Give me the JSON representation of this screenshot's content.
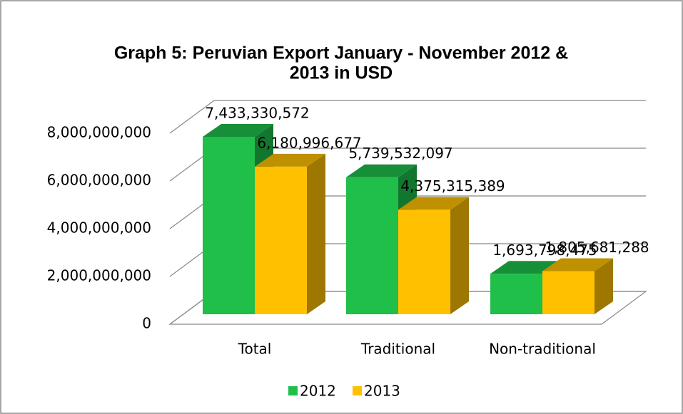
{
  "chart_data": {
    "type": "bar3d",
    "title": "Graph 5: Peruvian Export January - November 2012 &",
    "title_line2": "2013 in USD",
    "categories": [
      "Total",
      "Traditional",
      "Non-traditional"
    ],
    "series": [
      {
        "name": "2012",
        "color": "#1fbf4a",
        "values": [
          7433330572,
          5739532097,
          1693798475
        ],
        "value_labels": [
          "7,433,330,572",
          "5,739,532,097",
          "1,693,798,475"
        ]
      },
      {
        "name": "2013",
        "color": "#ffc000",
        "values": [
          6180996677,
          4375315389,
          1805681288
        ],
        "value_labels": [
          "6,180,996,677",
          "4,375,315,389",
          "1,805,681,288"
        ]
      }
    ],
    "ylim": [
      0,
      8000000000
    ],
    "yticks": [
      0,
      {
        "value": 2000000000,
        "label": "2,000,000,000"
      },
      {
        "value": 4000000000,
        "label": "4,000,000,000"
      },
      {
        "value": 6000000000,
        "label": "6,000,000,000"
      },
      {
        "value": 8000000000,
        "label": "8,000,000,000"
      }
    ],
    "grid": true,
    "legend": "bottom"
  }
}
